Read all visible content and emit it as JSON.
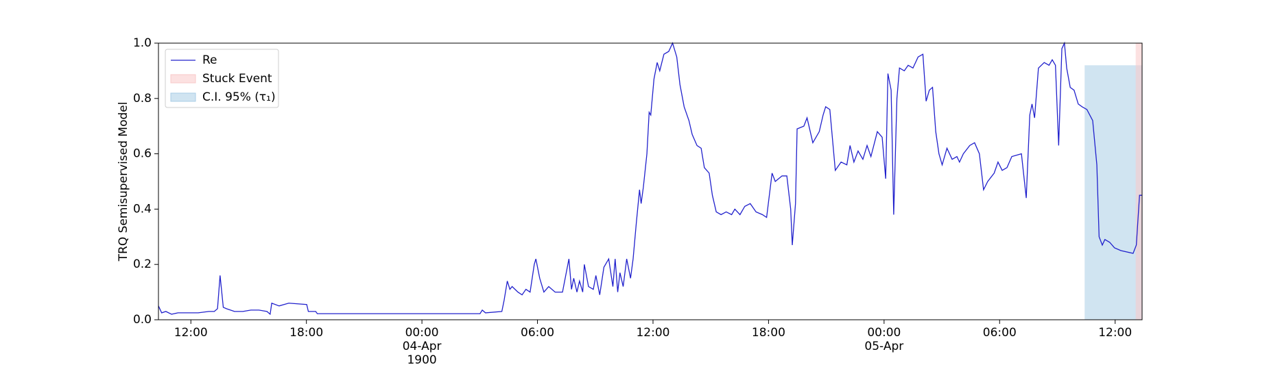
{
  "chart_data": {
    "type": "line",
    "ylabel": "TRQ Semisupervised Model",
    "x": [
      "1900-04-03 10:19",
      "1900-04-03 10:29",
      "1900-04-03 10:42",
      "1900-04-03 11:00",
      "1900-04-03 11:20",
      "1900-04-03 11:45",
      "1900-04-03 12:23",
      "1900-04-03 12:56",
      "1900-04-03 13:13",
      "1900-04-03 13:23",
      "1900-04-03 13:31",
      "1900-04-03 13:41",
      "1900-04-03 13:51",
      "1900-04-03 14:16",
      "1900-04-03 14:42",
      "1900-04-03 15:07",
      "1900-04-03 15:32",
      "1900-04-03 15:57",
      "1900-04-03 16:07",
      "1900-04-03 16:12",
      "1900-04-03 16:35",
      "1900-04-03 17:05",
      "1900-04-03 18:01",
      "1900-04-03 18:06",
      "1900-04-03 18:29",
      "1900-04-03 18:34",
      "1900-04-04 03:01",
      "1900-04-04 03:08",
      "1900-04-04 03:18",
      "1900-04-04 04:09",
      "1900-04-04 04:16",
      "1900-04-04 04:26",
      "1900-04-04 04:34",
      "1900-04-04 04:41",
      "1900-04-04 04:59",
      "1900-04-04 05:12",
      "1900-04-04 05:24",
      "1900-04-04 05:37",
      "1900-04-04 05:50",
      "1900-04-04 05:55",
      "1900-04-04 06:07",
      "1900-04-04 06:20",
      "1900-04-04 06:35",
      "1900-04-04 06:55",
      "1900-04-04 07:18",
      "1900-04-04 07:38",
      "1900-04-04 07:46",
      "1900-04-04 07:53",
      "1900-04-04 08:03",
      "1900-04-04 08:11",
      "1900-04-04 08:21",
      "1900-04-04 08:26",
      "1900-04-04 08:39",
      "1900-04-04 08:54",
      "1900-04-04 09:02",
      "1900-04-04 09:14",
      "1900-04-04 09:27",
      "1900-04-04 09:42",
      "1900-04-04 09:55",
      "1900-04-04 10:02",
      "1900-04-04 10:10",
      "1900-04-04 10:17",
      "1900-04-04 10:27",
      "1900-04-04 10:38",
      "1900-04-04 10:50",
      "1900-04-04 10:58",
      "1900-04-04 11:08",
      "1900-04-04 11:18",
      "1900-04-04 11:23",
      "1900-04-04 11:30",
      "1900-04-04 11:41",
      "1900-04-04 11:48",
      "1900-04-04 11:53",
      "1900-04-04 12:03",
      "1900-04-04 12:13",
      "1900-04-04 12:21",
      "1900-04-04 12:34",
      "1900-04-04 12:49",
      "1900-04-04 13:01",
      "1900-04-04 13:14",
      "1900-04-04 13:24",
      "1900-04-04 13:37",
      "1900-04-04 13:52",
      "1900-04-04 14:02",
      "1900-04-04 14:17",
      "1900-04-04 14:30",
      "1900-04-04 14:40",
      "1900-04-04 14:55",
      "1900-04-04 15:05",
      "1900-04-04 15:17",
      "1900-04-04 15:32",
      "1900-04-04 15:48",
      "1900-04-04 16:05",
      "1900-04-04 16:15",
      "1900-04-04 16:31",
      "1900-04-04 16:46",
      "1900-04-04 17:03",
      "1900-04-04 17:21",
      "1900-04-04 17:41",
      "1900-04-04 17:54",
      "1900-04-04 18:11",
      "1900-04-04 18:21",
      "1900-04-04 18:42",
      "1900-04-04 18:57",
      "1900-04-04 19:09",
      "1900-04-04 19:14",
      "1900-04-04 19:24",
      "1900-04-04 19:29",
      "1900-04-04 19:50",
      "1900-04-04 20:00",
      "1900-04-04 20:18",
      "1900-04-04 20:38",
      "1900-04-04 20:50",
      "1900-04-04 20:58",
      "1900-04-04 21:11",
      "1900-04-04 21:28",
      "1900-04-04 21:46",
      "1900-04-04 22:04",
      "1900-04-04 22:14",
      "1900-04-04 22:26",
      "1900-04-04 22:39",
      "1900-04-04 22:54",
      "1900-04-04 23:07",
      "1900-04-04 23:19",
      "1900-04-04 23:39",
      "1900-04-04 23:54",
      "1900-04-05 00:05",
      "1900-04-05 00:12",
      "1900-04-05 00:22",
      "1900-04-05 00:30",
      "1900-04-05 00:40",
      "1900-04-05 00:48",
      "1900-04-05 01:03",
      "1900-04-05 01:15",
      "1900-04-05 01:30",
      "1900-04-05 01:46",
      "1900-04-05 02:01",
      "1900-04-05 02:11",
      "1900-04-05 02:21",
      "1900-04-05 02:31",
      "1900-04-05 02:41",
      "1900-04-05 02:51",
      "1900-04-05 03:01",
      "1900-04-05 03:11",
      "1900-04-05 03:16",
      "1900-04-05 03:32",
      "1900-04-05 03:47",
      "1900-04-05 03:55",
      "1900-04-05 04:07",
      "1900-04-05 04:27",
      "1900-04-05 04:42",
      "1900-04-05 04:57",
      "1900-04-05 05:10",
      "1900-04-05 05:23",
      "1900-04-05 05:43",
      "1900-04-05 05:55",
      "1900-04-05 06:08",
      "1900-04-05 06:23",
      "1900-04-05 06:38",
      "1900-04-05 07:08",
      "1900-04-05 07:23",
      "1900-04-05 07:34",
      "1900-04-05 07:41",
      "1900-04-05 07:49",
      "1900-04-05 08:01",
      "1900-04-05 08:19",
      "1900-04-05 08:34",
      "1900-04-05 08:44",
      "1900-04-05 08:54",
      "1900-04-05 09:04",
      "1900-04-05 09:14",
      "1900-04-05 09:22",
      "1900-04-05 09:29",
      "1900-04-05 09:40",
      "1900-04-05 09:52",
      "1900-04-05 10:05",
      "1900-04-05 10:17",
      "1900-04-05 10:32",
      "1900-04-05 10:50",
      "1900-04-05 11:03",
      "1900-04-05 11:10",
      "1900-04-05 11:20",
      "1900-04-05 11:28",
      "1900-04-05 11:43",
      "1900-04-05 11:58",
      "1900-04-05 12:18",
      "1900-04-05 12:56",
      "1900-04-05 13:06",
      "1900-04-05 13:16",
      "1900-04-05 13:24"
    ],
    "series": [
      {
        "name": "Re",
        "color": "#2020cc",
        "values": [
          0.05,
          0.025,
          0.03,
          0.02,
          0.025,
          0.025,
          0.025,
          0.03,
          0.03,
          0.04,
          0.16,
          0.045,
          0.04,
          0.03,
          0.03,
          0.035,
          0.035,
          0.03,
          0.02,
          0.06,
          0.05,
          0.06,
          0.055,
          0.03,
          0.03,
          0.022,
          0.022,
          0.035,
          0.025,
          0.03,
          0.07,
          0.14,
          0.11,
          0.12,
          0.1,
          0.09,
          0.11,
          0.1,
          0.2,
          0.22,
          0.15,
          0.1,
          0.12,
          0.1,
          0.1,
          0.22,
          0.11,
          0.15,
          0.1,
          0.14,
          0.1,
          0.2,
          0.12,
          0.11,
          0.16,
          0.09,
          0.19,
          0.22,
          0.12,
          0.22,
          0.1,
          0.17,
          0.12,
          0.22,
          0.15,
          0.22,
          0.35,
          0.47,
          0.42,
          0.48,
          0.6,
          0.75,
          0.74,
          0.87,
          0.93,
          0.9,
          0.96,
          0.97,
          1.0,
          0.95,
          0.85,
          0.77,
          0.72,
          0.67,
          0.63,
          0.62,
          0.55,
          0.53,
          0.45,
          0.39,
          0.38,
          0.39,
          0.38,
          0.4,
          0.38,
          0.41,
          0.42,
          0.39,
          0.38,
          0.37,
          0.53,
          0.5,
          0.52,
          0.52,
          0.4,
          0.27,
          0.42,
          0.69,
          0.7,
          0.73,
          0.64,
          0.68,
          0.74,
          0.77,
          0.76,
          0.54,
          0.57,
          0.56,
          0.63,
          0.57,
          0.61,
          0.58,
          0.63,
          0.59,
          0.68,
          0.66,
          0.51,
          0.89,
          0.83,
          0.38,
          0.8,
          0.91,
          0.9,
          0.92,
          0.91,
          0.95,
          0.96,
          0.79,
          0.83,
          0.84,
          0.68,
          0.6,
          0.56,
          0.6,
          0.62,
          0.58,
          0.59,
          0.57,
          0.6,
          0.63,
          0.64,
          0.6,
          0.47,
          0.5,
          0.53,
          0.57,
          0.54,
          0.55,
          0.59,
          0.6,
          0.44,
          0.74,
          0.78,
          0.73,
          0.91,
          0.93,
          0.92,
          0.94,
          0.92,
          0.63,
          0.98,
          1.0,
          0.91,
          0.84,
          0.83,
          0.78,
          0.77,
          0.76,
          0.72,
          0.56,
          0.3,
          0.27,
          0.29,
          0.28,
          0.26,
          0.25,
          0.24,
          0.27,
          0.45,
          0.45
        ]
      }
    ],
    "spans": [
      {
        "name": "Stuck Event",
        "color": "#f9c9c9",
        "x": [
          "1900-04-05 13:04",
          "1900-04-05 13:24"
        ]
      },
      {
        "name": "C.I. 95% (τ₁)",
        "color": "#a9cde6",
        "x": [
          "1900-04-05 10:25",
          "1900-04-05 13:24"
        ],
        "y": [
          0,
          0.92
        ]
      }
    ],
    "xlim": [
      "1900-04-03 10:19",
      "1900-04-05 13:24"
    ],
    "xticks": [
      {
        "value": "1900-04-03 12:00",
        "label": "12:00"
      },
      {
        "value": "1900-04-03 18:00",
        "label": "18:00"
      },
      {
        "value": "1900-04-04 00:00",
        "label": "00:00\n04-Apr\n1900"
      },
      {
        "value": "1900-04-04 06:00",
        "label": "06:00"
      },
      {
        "value": "1900-04-04 12:00",
        "label": "12:00"
      },
      {
        "value": "1900-04-04 18:00",
        "label": "18:00"
      },
      {
        "value": "1900-04-05 00:00",
        "label": "00:00\n05-Apr"
      },
      {
        "value": "1900-04-05 06:00",
        "label": "06:00"
      },
      {
        "value": "1900-04-05 12:00",
        "label": "12:00"
      }
    ],
    "ylim": [
      0,
      1
    ],
    "yticks": [
      {
        "value": 0,
        "label": "0.0"
      },
      0.2,
      0.4,
      0.6,
      0.8,
      {
        "value": 1,
        "label": "1.0"
      }
    ],
    "legend": "upper left"
  }
}
